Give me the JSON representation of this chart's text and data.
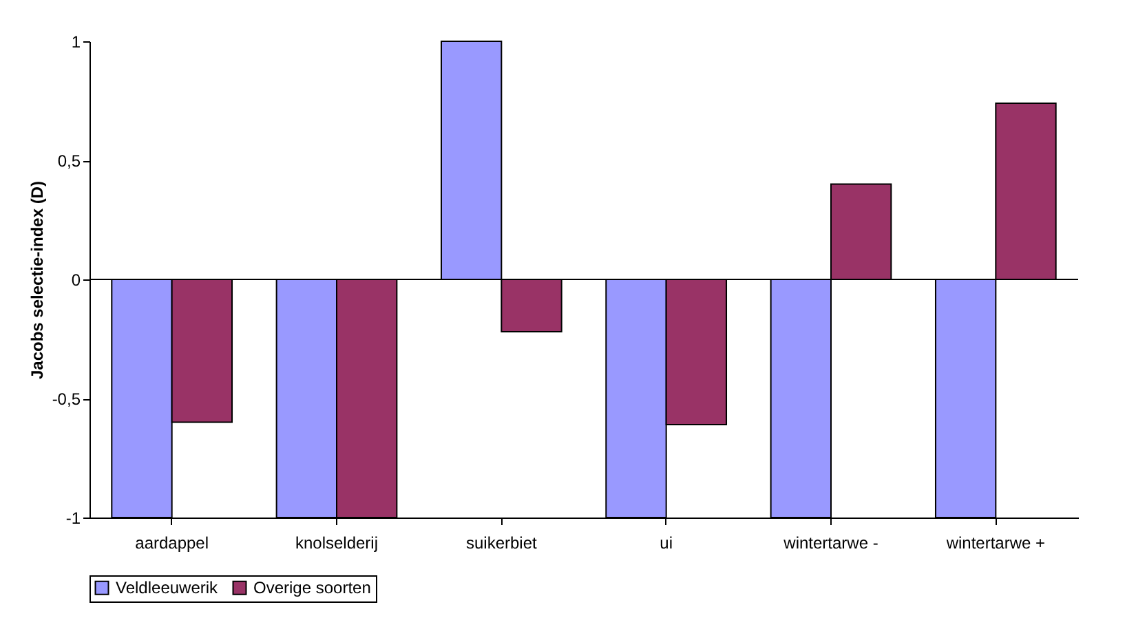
{
  "chart_data": {
    "type": "bar",
    "ylabel": "Jacobs selectie-index (D)",
    "categories": [
      "aardappel",
      "knolselderij",
      "suikerbiet",
      "ui",
      "wintertarwe -",
      "wintertarwe +"
    ],
    "series": [
      {
        "name": "Veldleeuwerik",
        "color": "#9999ff",
        "values": [
          -1,
          -1,
          1,
          -1,
          -1,
          -1
        ]
      },
      {
        "name": "Overige soorten",
        "color": "#993366",
        "values": [
          -0.6,
          -1,
          -0.22,
          -0.61,
          0.4,
          0.74
        ]
      }
    ],
    "ylim": [
      -1,
      1
    ],
    "yticks": [
      -1,
      {
        "value": -0.5,
        "label": "-0,5"
      },
      0,
      {
        "value": 0.5,
        "label": "0,5"
      },
      1
    ],
    "ref_lines": [
      {
        "axis": "y",
        "value": 0,
        "color": "#000000"
      }
    ],
    "grid": false,
    "legend": "bottom"
  }
}
